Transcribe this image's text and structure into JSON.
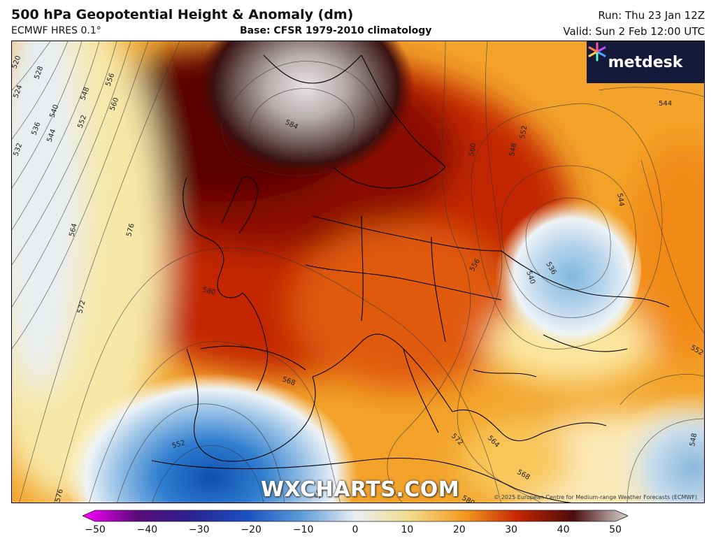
{
  "header": {
    "title": "500 hPa Geopotential Height & Anomaly (dm)",
    "model": "ECMWF HRES 0.1°",
    "base": "Base: CFSR 1979-2010 climatology",
    "run": "Run: Thu 23 Jan 12Z",
    "valid": "Valid: Sun 2 Feb 12:00 UTC"
  },
  "logo": {
    "text": "metdesk",
    "icon": "metdesk-star-icon"
  },
  "watermark": "WXCHARTS.COM",
  "copyright": "© 2025 European Centre for Medium-range Weather Forecasts (ECMWF)",
  "contour_labels": [
    "520",
    "524",
    "528",
    "532",
    "536",
    "540",
    "544",
    "548",
    "552",
    "556",
    "560",
    "564",
    "572",
    "576",
    "580",
    "584",
    "568",
    "536",
    "540",
    "544",
    "548",
    "552",
    "560",
    "544",
    "552",
    "548",
    "556",
    "572",
    "568",
    "564",
    "580",
    "552",
    "564",
    "576"
  ],
  "colorbar": {
    "ticks": [
      "−50",
      "−40",
      "−30",
      "−20",
      "−10",
      "0",
      "10",
      "20",
      "30",
      "40",
      "50"
    ],
    "min": -50,
    "max": 50,
    "colors": [
      "#ff00ff",
      "#5a0a7a",
      "#2a2290",
      "#1a4fc0",
      "#5b9ad8",
      "#e8eef4",
      "#f2dc8a",
      "#f39a20",
      "#c52400",
      "#4a0d0d",
      "#d8d2d2"
    ]
  }
}
